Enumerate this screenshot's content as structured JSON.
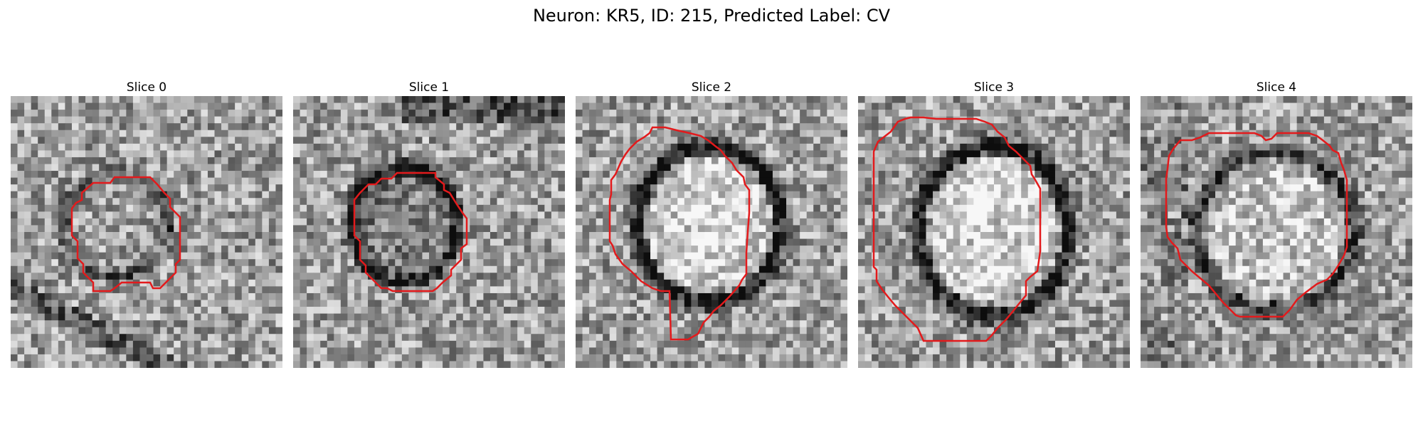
{
  "figure": {
    "title": "Neuron: KR5, ID: 215, Predicted Label: CV",
    "contour_color": "#e31a1c"
  },
  "panels": [
    {
      "title": "Slice 0",
      "icon": "em-slice-image"
    },
    {
      "title": "Slice 1",
      "icon": "em-slice-image"
    },
    {
      "title": "Slice 2",
      "icon": "em-slice-image"
    },
    {
      "title": "Slice 3",
      "icon": "em-slice-image"
    },
    {
      "title": "Slice 4",
      "icon": "em-slice-image"
    }
  ]
}
